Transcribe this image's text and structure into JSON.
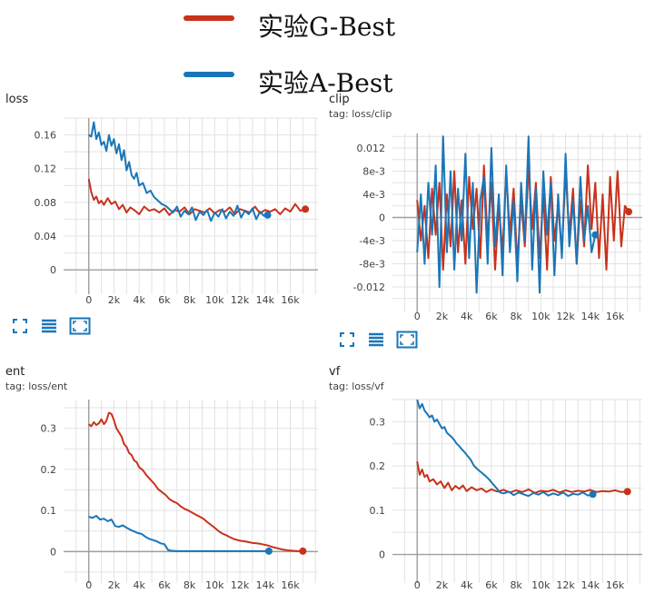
{
  "legend": [
    {
      "label": "实验G-Best",
      "color": "#c8321a"
    },
    {
      "label": "实验A-Best",
      "color": "#1a76b8"
    }
  ],
  "panels": [
    {
      "title": "loss",
      "tag": ""
    },
    {
      "title": "clip",
      "tag": "tag: loss/clip"
    },
    {
      "title": "ent",
      "tag": "tag: loss/ent"
    },
    {
      "title": "vf",
      "tag": "tag: loss/vf"
    }
  ],
  "toolbar_icons": [
    "fit-domain-icon",
    "toggle-log-icon",
    "expand-chart-icon"
  ],
  "chart_data": [
    {
      "type": "line",
      "title": "loss",
      "x_ticks": [
        "0",
        "2k",
        "4k",
        "6k",
        "8k",
        "10k",
        "12k",
        "14k",
        "16k"
      ],
      "x_tick_values": [
        0,
        2000,
        4000,
        6000,
        8000,
        10000,
        12000,
        14000,
        16000
      ],
      "y_ticks": [
        "0.16",
        "0.12",
        "0.08",
        "0.04",
        "0"
      ],
      "y_tick_values": [
        0.16,
        0.12,
        0.08,
        0.04,
        0
      ],
      "xlim": [
        -2000,
        18200
      ],
      "ylim": [
        -0.016,
        0.18
      ],
      "grid": true,
      "series": [
        {
          "name": "实验G-Best",
          "color": "#c8321a",
          "end_marker": true,
          "x": [
            0,
            200,
            400,
            600,
            800,
            1000,
            1200,
            1500,
            1800,
            2100,
            2400,
            2700,
            3000,
            3300,
            3600,
            4000,
            4400,
            4800,
            5200,
            5600,
            6000,
            6400,
            6800,
            7200,
            7600,
            8000,
            8400,
            8800,
            9200,
            9600,
            10000,
            10400,
            10800,
            11200,
            11600,
            12000,
            12400,
            12800,
            13200,
            13600,
            14000,
            14400,
            14800,
            15200,
            15600,
            16000,
            16400,
            16800,
            17200
          ],
          "y": [
            0.108,
            0.092,
            0.083,
            0.087,
            0.079,
            0.082,
            0.077,
            0.085,
            0.078,
            0.081,
            0.072,
            0.077,
            0.068,
            0.074,
            0.071,
            0.066,
            0.075,
            0.07,
            0.072,
            0.068,
            0.073,
            0.065,
            0.071,
            0.069,
            0.074,
            0.066,
            0.072,
            0.07,
            0.068,
            0.073,
            0.067,
            0.071,
            0.069,
            0.074,
            0.066,
            0.072,
            0.07,
            0.068,
            0.075,
            0.067,
            0.071,
            0.069,
            0.072,
            0.066,
            0.073,
            0.069,
            0.078,
            0.07,
            0.072
          ]
        },
        {
          "name": "实验A-Best",
          "color": "#1a76b8",
          "end_marker": true,
          "x": [
            0,
            200,
            400,
            600,
            800,
            1000,
            1200,
            1400,
            1600,
            1800,
            2000,
            2200,
            2400,
            2600,
            2800,
            3000,
            3200,
            3400,
            3600,
            3800,
            4000,
            4300,
            4600,
            4900,
            5200,
            5500,
            5800,
            6100,
            6400,
            6700,
            7000,
            7300,
            7600,
            7900,
            8200,
            8500,
            8800,
            9100,
            9400,
            9700,
            10000,
            10300,
            10600,
            10900,
            11200,
            11500,
            11800,
            12100,
            12400,
            12700,
            13000,
            13300,
            13600,
            13900,
            14200
          ],
          "y": [
            0.16,
            0.158,
            0.175,
            0.155,
            0.163,
            0.148,
            0.152,
            0.141,
            0.16,
            0.147,
            0.155,
            0.138,
            0.149,
            0.13,
            0.142,
            0.118,
            0.128,
            0.112,
            0.108,
            0.115,
            0.1,
            0.103,
            0.091,
            0.094,
            0.086,
            0.082,
            0.078,
            0.076,
            0.072,
            0.068,
            0.075,
            0.063,
            0.07,
            0.066,
            0.074,
            0.059,
            0.069,
            0.065,
            0.071,
            0.058,
            0.068,
            0.063,
            0.072,
            0.061,
            0.069,
            0.064,
            0.076,
            0.062,
            0.07,
            0.066,
            0.073,
            0.06,
            0.069,
            0.064,
            0.065
          ]
        }
      ]
    },
    {
      "type": "line",
      "title": "clip",
      "x_ticks": [
        "0",
        "2k",
        "4k",
        "6k",
        "8k",
        "10k",
        "12k",
        "14k",
        "16k"
      ],
      "x_tick_values": [
        0,
        2000,
        4000,
        6000,
        8000,
        10000,
        12000,
        14000,
        16000
      ],
      "y_ticks": [
        "0.012",
        "8e-3",
        "4e-3",
        "0",
        "-4e-3",
        "-8e-3",
        "-0.012"
      ],
      "y_tick_values": [
        0.012,
        0.008,
        0.004,
        0,
        -0.004,
        -0.008,
        -0.012
      ],
      "xlim": [
        -2000,
        18200
      ],
      "ylim": [
        -0.0145,
        0.0145
      ],
      "grid": true,
      "series": [
        {
          "name": "实验G-Best",
          "color": "#c8321a",
          "end_marker": true,
          "x": [
            0,
            300,
            600,
            900,
            1200,
            1500,
            1800,
            2100,
            2400,
            2700,
            3000,
            3300,
            3600,
            3900,
            4200,
            4500,
            4800,
            5100,
            5400,
            5700,
            6000,
            6300,
            6600,
            6900,
            7200,
            7500,
            7800,
            8100,
            8400,
            8700,
            9000,
            9300,
            9600,
            9900,
            10200,
            10500,
            10800,
            11100,
            11400,
            11700,
            12000,
            12300,
            12600,
            12900,
            13200,
            13500,
            13800,
            14100,
            14400,
            14700,
            15000,
            15300,
            15600,
            15900,
            16200,
            16500,
            16800,
            17100
          ],
          "y": [
            0.003,
            -0.004,
            0.002,
            -0.007,
            0.005,
            -0.003,
            0.006,
            -0.009,
            0.004,
            -0.005,
            0.008,
            -0.006,
            0.003,
            -0.008,
            0.007,
            -0.002,
            0.005,
            -0.007,
            0.009,
            -0.004,
            0.006,
            -0.009,
            0.002,
            -0.006,
            0.008,
            -0.003,
            0.005,
            -0.008,
            0.003,
            -0.005,
            0.009,
            -0.002,
            0.006,
            -0.007,
            0.004,
            -0.009,
            0.007,
            -0.004,
            0.002,
            -0.006,
            0.008,
            -0.003,
            0.005,
            -0.008,
            0.003,
            -0.005,
            0.009,
            -0.002,
            0.006,
            -0.007,
            0.004,
            -0.009,
            0.007,
            -0.004,
            0.008,
            -0.005,
            0.002,
            0.001
          ]
        },
        {
          "name": "实验A-Best",
          "color": "#1a76b8",
          "end_marker": true,
          "x": [
            0,
            300,
            600,
            900,
            1200,
            1500,
            1800,
            2100,
            2400,
            2700,
            3000,
            3300,
            3600,
            3900,
            4200,
            4500,
            4800,
            5100,
            5400,
            5700,
            6000,
            6300,
            6600,
            6900,
            7200,
            7500,
            7800,
            8100,
            8400,
            8700,
            9000,
            9300,
            9600,
            9900,
            10200,
            10500,
            10800,
            11100,
            11400,
            11700,
            12000,
            12300,
            12600,
            12900,
            13200,
            13500,
            13800,
            14100,
            14400
          ],
          "y": [
            -0.006,
            0.004,
            -0.008,
            0.006,
            -0.003,
            0.009,
            -0.012,
            0.014,
            -0.006,
            0.008,
            -0.009,
            0.005,
            -0.004,
            0.011,
            -0.007,
            0.006,
            -0.013,
            0.003,
            0.007,
            -0.008,
            0.012,
            -0.005,
            0.004,
            -0.01,
            0.009,
            -0.006,
            0.003,
            -0.011,
            0.006,
            -0.004,
            0.014,
            -0.009,
            0.005,
            -0.013,
            0.008,
            -0.003,
            0.006,
            -0.01,
            0.004,
            -0.007,
            0.011,
            -0.005,
            0.003,
            -0.008,
            0.007,
            -0.004,
            0.002,
            -0.006,
            -0.003
          ]
        }
      ]
    },
    {
      "type": "line",
      "title": "ent",
      "x_ticks": [
        "0",
        "2k",
        "4k",
        "6k",
        "8k",
        "10k",
        "12k",
        "14k",
        "16k"
      ],
      "x_tick_values": [
        0,
        2000,
        4000,
        6000,
        8000,
        10000,
        12000,
        14000,
        16000
      ],
      "y_ticks": [
        "0.3",
        "0.2",
        "0.1",
        "0"
      ],
      "y_tick_values": [
        0.3,
        0.2,
        0.1,
        0
      ],
      "xlim": [
        -2000,
        18200
      ],
      "ylim": [
        -0.05,
        0.37
      ],
      "grid": true,
      "series": [
        {
          "name": "实验G-Best",
          "color": "#c8321a",
          "end_marker": true,
          "x": [
            0,
            200,
            400,
            600,
            800,
            1000,
            1200,
            1400,
            1600,
            1800,
            2000,
            2200,
            2400,
            2600,
            2800,
            3000,
            3200,
            3400,
            3600,
            3800,
            4000,
            4300,
            4600,
            4900,
            5200,
            5500,
            5800,
            6100,
            6400,
            6700,
            7000,
            7300,
            7600,
            7900,
            8200,
            8500,
            8800,
            9100,
            9400,
            9700,
            10000,
            10300,
            10600,
            10900,
            11200,
            11500,
            11800,
            12100,
            12400,
            12700,
            13000,
            13300,
            13600,
            13900,
            14200,
            14600,
            15000,
            15400,
            15800,
            16200,
            16600,
            17000
          ],
          "y": [
            0.31,
            0.305,
            0.315,
            0.308,
            0.312,
            0.322,
            0.31,
            0.318,
            0.338,
            0.335,
            0.32,
            0.3,
            0.29,
            0.28,
            0.262,
            0.255,
            0.24,
            0.235,
            0.222,
            0.218,
            0.205,
            0.198,
            0.185,
            0.175,
            0.165,
            0.152,
            0.145,
            0.138,
            0.128,
            0.122,
            0.118,
            0.11,
            0.104,
            0.1,
            0.095,
            0.09,
            0.085,
            0.08,
            0.072,
            0.065,
            0.058,
            0.05,
            0.044,
            0.04,
            0.035,
            0.031,
            0.028,
            0.026,
            0.025,
            0.023,
            0.021,
            0.02,
            0.019,
            0.017,
            0.015,
            0.011,
            0.008,
            0.005,
            0.003,
            0.002,
            0.001,
            0.001
          ]
        },
        {
          "name": "实验A-Best",
          "color": "#1a76b8",
          "end_marker": true,
          "x": [
            0,
            300,
            600,
            900,
            1200,
            1500,
            1800,
            2100,
            2400,
            2700,
            3000,
            3300,
            3600,
            3900,
            4200,
            4500,
            4800,
            5100,
            5400,
            5700,
            6000,
            6300,
            6600,
            7000,
            8000,
            9000,
            10000,
            11000,
            12000,
            13000,
            14000,
            14300
          ],
          "y": [
            0.085,
            0.082,
            0.087,
            0.078,
            0.08,
            0.074,
            0.078,
            0.062,
            0.06,
            0.064,
            0.058,
            0.053,
            0.049,
            0.045,
            0.043,
            0.036,
            0.031,
            0.028,
            0.025,
            0.02,
            0.018,
            0.004,
            0.002,
            0.001,
            0.001,
            0.001,
            0.001,
            0.001,
            0.001,
            0.001,
            0.001,
            0.001
          ]
        }
      ]
    },
    {
      "type": "line",
      "title": "vf",
      "x_ticks": [
        "0",
        "2k",
        "4k",
        "6k",
        "8k",
        "10k",
        "12k",
        "14k",
        "16k"
      ],
      "x_tick_values": [
        0,
        2000,
        4000,
        6000,
        8000,
        10000,
        12000,
        14000,
        16000
      ],
      "y_ticks": [
        "0.3",
        "0.2",
        "0.1",
        "0"
      ],
      "y_tick_values": [
        0.3,
        0.2,
        0.1,
        0
      ],
      "xlim": [
        -2000,
        18200
      ],
      "ylim": [
        -0.04,
        0.35
      ],
      "grid": true,
      "series": [
        {
          "name": "实验G-Best",
          "color": "#c8321a",
          "end_marker": true,
          "x": [
            0,
            200,
            400,
            600,
            800,
            1000,
            1300,
            1600,
            1900,
            2200,
            2500,
            2800,
            3100,
            3400,
            3700,
            4000,
            4400,
            4800,
            5200,
            5600,
            6000,
            6500,
            7000,
            7500,
            8000,
            8500,
            9000,
            9500,
            10000,
            10500,
            11000,
            11500,
            12000,
            12500,
            13000,
            13500,
            14000,
            14500,
            15000,
            15500,
            16000,
            16500,
            17000
          ],
          "y": [
            0.21,
            0.18,
            0.192,
            0.175,
            0.18,
            0.165,
            0.17,
            0.158,
            0.165,
            0.15,
            0.162,
            0.145,
            0.155,
            0.148,
            0.156,
            0.143,
            0.152,
            0.145,
            0.149,
            0.141,
            0.147,
            0.142,
            0.146,
            0.14,
            0.145,
            0.141,
            0.147,
            0.139,
            0.144,
            0.142,
            0.146,
            0.14,
            0.145,
            0.141,
            0.144,
            0.142,
            0.146,
            0.141,
            0.143,
            0.142,
            0.145,
            0.141,
            0.142
          ]
        },
        {
          "name": "实验A-Best",
          "color": "#1a76b8",
          "end_marker": true,
          "x": [
            0,
            200,
            400,
            600,
            800,
            1000,
            1200,
            1400,
            1600,
            1800,
            2000,
            2200,
            2400,
            2600,
            2800,
            3000,
            3200,
            3400,
            3600,
            3800,
            4000,
            4300,
            4600,
            4900,
            5200,
            5500,
            5800,
            6100,
            6400,
            6700,
            7000,
            7400,
            7800,
            8200,
            8600,
            9000,
            9400,
            9800,
            10200,
            10600,
            11000,
            11400,
            11800,
            12200,
            12600,
            13000,
            13400,
            13800,
            14200
          ],
          "y": [
            0.35,
            0.33,
            0.34,
            0.325,
            0.318,
            0.31,
            0.314,
            0.3,
            0.305,
            0.295,
            0.285,
            0.288,
            0.275,
            0.27,
            0.265,
            0.258,
            0.25,
            0.245,
            0.238,
            0.232,
            0.225,
            0.215,
            0.2,
            0.192,
            0.185,
            0.178,
            0.17,
            0.16,
            0.15,
            0.14,
            0.138,
            0.142,
            0.134,
            0.14,
            0.136,
            0.132,
            0.139,
            0.135,
            0.141,
            0.133,
            0.138,
            0.134,
            0.14,
            0.132,
            0.137,
            0.135,
            0.14,
            0.133,
            0.136
          ]
        }
      ]
    }
  ]
}
